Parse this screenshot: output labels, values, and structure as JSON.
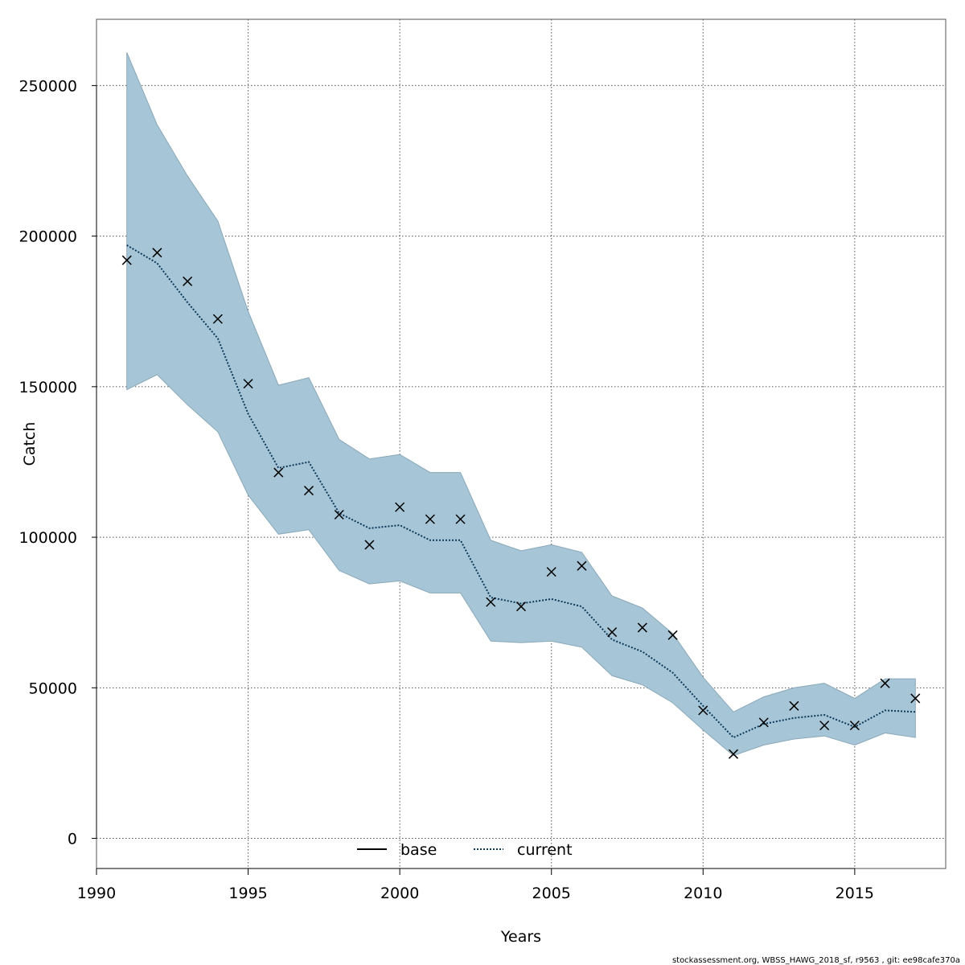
{
  "chart_data": {
    "type": "line",
    "title": "",
    "xlabel": "Years",
    "ylabel": "Catch",
    "xlim": [
      1990,
      2018
    ],
    "ylim": [
      -10000,
      272000
    ],
    "x_ticks": [
      1990,
      1995,
      2000,
      2005,
      2010,
      2015
    ],
    "y_ticks": [
      0,
      50000,
      100000,
      150000,
      200000,
      250000
    ],
    "grid": true,
    "legend_position": "bottom-center",
    "legend": [
      {
        "name": "base",
        "style": "solid"
      },
      {
        "name": "current",
        "style": "dotted"
      }
    ],
    "x": [
      1991,
      1992,
      1993,
      1994,
      1995,
      1996,
      1997,
      1998,
      1999,
      2000,
      2001,
      2002,
      2003,
      2004,
      2005,
      2006,
      2007,
      2008,
      2009,
      2010,
      2011,
      2012,
      2013,
      2014,
      2015,
      2016,
      2017
    ],
    "series": [
      {
        "name": "current",
        "kind": "line",
        "values": [
          197000,
          191000,
          178000,
          166000,
          141000,
          123000,
          125000,
          108000,
          103000,
          104000,
          99000,
          99000,
          80000,
          78000,
          79500,
          77000,
          66000,
          62000,
          55000,
          44000,
          33500,
          38000,
          40000,
          41000,
          37000,
          42500,
          42000
        ]
      },
      {
        "name": "observed",
        "kind": "points",
        "values": [
          192000,
          194500,
          185000,
          172500,
          151000,
          121500,
          115500,
          107500,
          97500,
          110000,
          106000,
          106000,
          78500,
          77000,
          88500,
          90500,
          68500,
          70000,
          67500,
          42500,
          28000,
          38500,
          44000,
          37500,
          37500,
          51500,
          46500
        ]
      },
      {
        "name": "interval",
        "kind": "band",
        "lower": [
          149000,
          154000,
          144000,
          135000,
          114000,
          101000,
          102500,
          89000,
          84500,
          85500,
          81500,
          81500,
          65500,
          65000,
          65500,
          63500,
          54000,
          51000,
          45000,
          36000,
          27500,
          31000,
          33000,
          34000,
          31000,
          35000,
          33500
        ],
        "upper": [
          261000,
          237000,
          220000,
          205000,
          175000,
          150500,
          153000,
          132500,
          126000,
          127500,
          121500,
          121500,
          99000,
          95500,
          97500,
          95000,
          80500,
          76500,
          68000,
          53500,
          42000,
          47000,
          50000,
          51500,
          46500,
          53000,
          53000
        ]
      }
    ],
    "colors": {
      "band_fill": "#a6c5d6",
      "band_stroke": "#8aa8b8",
      "current_line": "#0b3a5c",
      "points": "#000000",
      "grid": "#555555"
    }
  },
  "footer": "stockassessment.org, WBSS_HAWG_2018_sf, r9563 , git: ee98cafe370a"
}
